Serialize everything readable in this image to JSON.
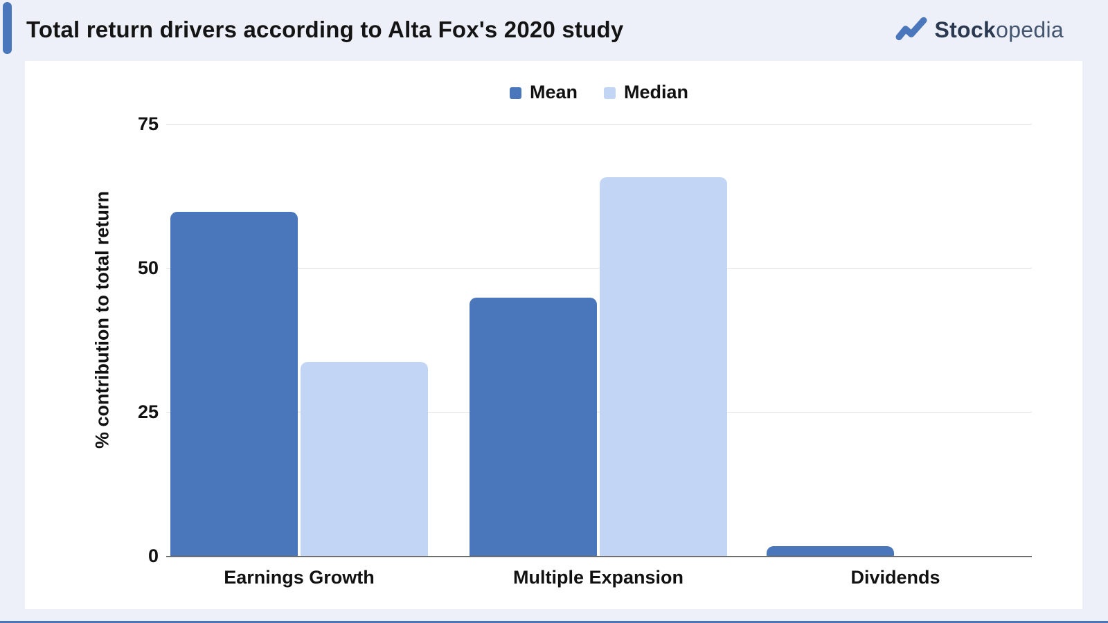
{
  "header": {
    "title": "Total return drivers according to Alta Fox's 2020 study",
    "brand": {
      "name_bold": "Stock",
      "name_light": "opedia",
      "icon": "trend-zigzag-icon"
    }
  },
  "chart_data": {
    "type": "bar",
    "title": "Total return drivers according to Alta Fox's 2020 study",
    "categories": [
      "Earnings Growth",
      "Multiple Expansion",
      "Dividends"
    ],
    "series": [
      {
        "name": "Mean",
        "color": "#4a76bb",
        "values": [
          59.7,
          44.8,
          1.7
        ]
      },
      {
        "name": "Median",
        "color": "#c3d5f4",
        "values": [
          33.7,
          65.7,
          0
        ]
      }
    ],
    "xlabel": "",
    "ylabel": "% contribution to total return",
    "yticks": [
      0,
      25,
      50,
      75
    ],
    "ylim": [
      0,
      80
    ],
    "grid": true,
    "legend_position": "top-center"
  },
  "colors": {
    "mean_bar": "#4a76bb",
    "median_bar": "#c3d5f4",
    "page_background": "#edf0f8",
    "card_background": "#ffffff",
    "gridline": "#e3e3e3",
    "axis_line": "#6e6e6e",
    "accent": "#4a76bb",
    "brand_dark": "#2a3950",
    "brand_light": "#44556f"
  }
}
